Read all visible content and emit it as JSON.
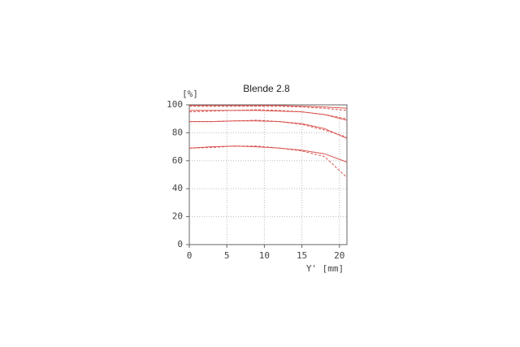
{
  "chart_data": {
    "type": "line",
    "title": "Blende 2.8",
    "ylabel": "[%]",
    "xlabel": "Y' [mm]",
    "x": [
      0,
      3,
      6,
      9,
      12,
      15,
      18,
      21
    ],
    "series": [
      {
        "color": "#d9534f",
        "dashed": false,
        "values": [
          99.5,
          99.5,
          99.5,
          99.5,
          99.5,
          99,
          98.5,
          97.5
        ]
      },
      {
        "color": "#d9534f",
        "dashed": true,
        "values": [
          99,
          99,
          99,
          99,
          99,
          98.5,
          97.5,
          96
        ]
      },
      {
        "color": "#d9534f",
        "dashed": false,
        "values": [
          96,
          96,
          96,
          96,
          95.5,
          95,
          93,
          89
        ]
      },
      {
        "color": "#d9534f",
        "dashed": true,
        "values": [
          95,
          95.5,
          96,
          96.5,
          96,
          95,
          93,
          90
        ]
      },
      {
        "color": "#d9534f",
        "dashed": false,
        "values": [
          88,
          88,
          88.5,
          88.5,
          88,
          86.5,
          83,
          76
        ]
      },
      {
        "color": "#d9534f",
        "dashed": true,
        "values": [
          88,
          88,
          88.5,
          89,
          88,
          86,
          82,
          77
        ]
      },
      {
        "color": "#d9534f",
        "dashed": false,
        "values": [
          69,
          70,
          70.5,
          70,
          69,
          67.5,
          65,
          59
        ]
      },
      {
        "color": "#d9534f",
        "dashed": true,
        "values": [
          69,
          69.5,
          70.5,
          70.5,
          69,
          67,
          63,
          48
        ]
      }
    ],
    "xlim": [
      0,
      21
    ],
    "xticks": [
      0,
      5,
      10,
      15,
      20
    ],
    "ylim": [
      0,
      100
    ],
    "yticks": [
      0,
      20,
      40,
      60,
      80,
      100
    ],
    "grid": true
  }
}
